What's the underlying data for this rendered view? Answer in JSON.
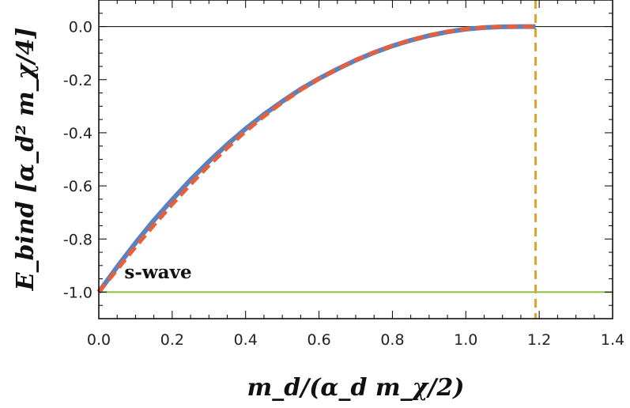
{
  "chart_data": {
    "type": "line",
    "title": "",
    "xlabel": "m_d/(α_d m_χ/2)",
    "ylabel": "E_bind [α_d² m_χ/4]",
    "xlim": [
      0.0,
      1.4
    ],
    "ylim": [
      -1.1,
      0.1
    ],
    "x_ticks": [
      "0.0",
      "0.2",
      "0.4",
      "0.6",
      "0.8",
      "1.0",
      "1.2",
      "1.4"
    ],
    "y_ticks": [
      "0.0",
      "-0.2",
      "-0.4",
      "-0.6",
      "-0.8",
      "-1.0"
    ],
    "grid": false,
    "colors": {
      "solid": "#5b82bf",
      "dashed": "#e8603a",
      "vline": "#e3a32c",
      "hline": "#8cbd3f",
      "zero": "#000000"
    },
    "series": [
      {
        "style": "solid",
        "x": [
          0.0,
          0.05,
          0.1,
          0.15,
          0.2,
          0.25,
          0.3,
          0.35,
          0.4,
          0.45,
          0.5,
          0.55,
          0.6,
          0.65,
          0.7,
          0.75,
          0.8,
          0.85,
          0.9,
          0.95,
          1.0,
          1.05,
          1.1,
          1.15,
          1.19
        ],
        "y": [
          -1.0,
          -0.905,
          -0.815,
          -0.73,
          -0.652,
          -0.577,
          -0.508,
          -0.444,
          -0.385,
          -0.331,
          -0.282,
          -0.236,
          -0.196,
          -0.16,
          -0.127,
          -0.098,
          -0.073,
          -0.052,
          -0.034,
          -0.02,
          -0.01,
          -0.004,
          -0.001,
          0.0,
          0.0
        ]
      },
      {
        "style": "dashed",
        "x": [
          0.0,
          0.05,
          0.1,
          0.15,
          0.2,
          0.25,
          0.3,
          0.35,
          0.4,
          0.45,
          0.5,
          0.55,
          0.6,
          0.65,
          0.7,
          0.75,
          0.8,
          0.85,
          0.9,
          0.95,
          1.0,
          1.05,
          1.1,
          1.15,
          1.19
        ],
        "y": [
          -1.0,
          -0.915,
          -0.83,
          -0.748,
          -0.669,
          -0.594,
          -0.523,
          -0.457,
          -0.395,
          -0.338,
          -0.286,
          -0.239,
          -0.197,
          -0.16,
          -0.126,
          -0.097,
          -0.072,
          -0.051,
          -0.033,
          -0.019,
          -0.009,
          -0.003,
          0.0,
          0.0,
          0.0
        ]
      }
    ],
    "vlines": [
      {
        "x": 1.19,
        "style": "dashed"
      }
    ],
    "hlines": [
      {
        "y": -1.0,
        "style": "solid"
      },
      {
        "y": 0.0,
        "style": "thin"
      }
    ],
    "annotations": [
      {
        "text": "s-wave",
        "x": 0.1,
        "y": -0.93
      }
    ]
  }
}
